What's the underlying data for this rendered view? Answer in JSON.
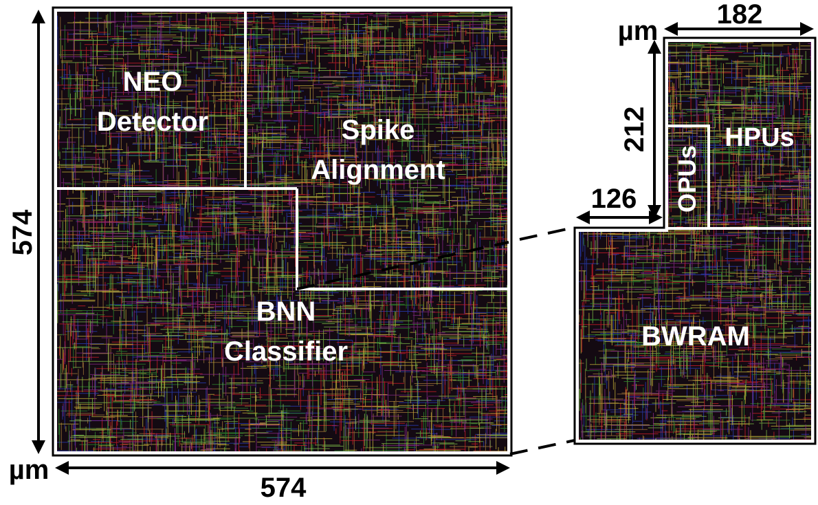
{
  "main_chip": {
    "regions": {
      "neo_detector": [
        "NEO",
        "Detector"
      ],
      "spike_alignment": [
        "Spike",
        "Alignment"
      ],
      "bnn_classifier": [
        "BNN",
        "Classifier"
      ]
    },
    "width_label": "574",
    "height_label": "574",
    "unit_label": "µm"
  },
  "zoom_block": {
    "regions": {
      "hpus": "HPUs",
      "opus": "OPUs",
      "bwram": "BWRAM"
    },
    "top_width_label": "182",
    "left_height_label": "212",
    "lower_step_label": "126",
    "unit_label": "µm"
  },
  "colors": {
    "wire_palette": [
      "#d81e2a",
      "#2f8f2f",
      "#c9b43a",
      "#8a2a8a",
      "#2a3fbf",
      "#a57a3a",
      "#7fbf4a"
    ],
    "background": "#140a12",
    "region_border": "#ffffff"
  }
}
